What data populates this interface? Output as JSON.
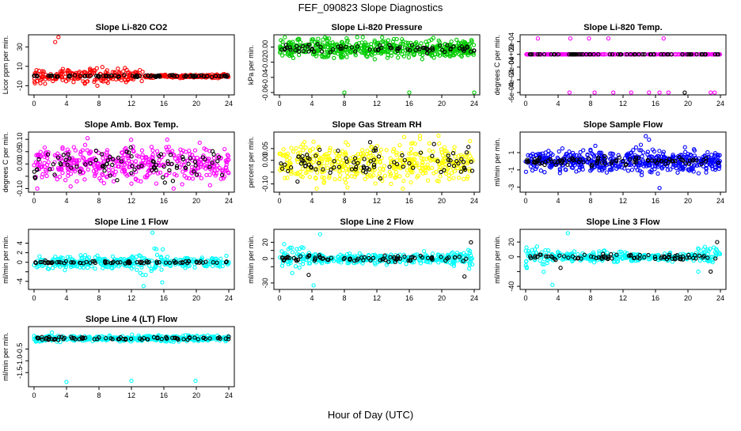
{
  "figure": {
    "title": "FEF_090823  Slope Diagnostics",
    "xlabel": "Hour of Day (UTC)"
  },
  "chart_data": [
    {
      "type": "scatter",
      "title": "Slope Li-820 CO2",
      "xlabel": "",
      "ylabel": "Licor ppm per min.",
      "xlim": [
        0,
        24
      ],
      "ylim": [
        -17,
        40
      ],
      "xticks": [
        0,
        4,
        8,
        12,
        16,
        20,
        24
      ],
      "yticks": [
        -10,
        10,
        30
      ],
      "ytick_labels": [
        "-10",
        "10",
        "30"
      ],
      "series": [
        {
          "color": "#ff0000",
          "center": 0,
          "spread": 3.5,
          "tail_end": 14,
          "points": 360,
          "outliers": [
            [
              2.6,
              35
            ],
            [
              3.0,
              40
            ],
            [
              7.8,
              -10
            ],
            [
              9.1,
              -7
            ]
          ]
        },
        {
          "color": "#000000",
          "center": 0,
          "spread": 0.5,
          "points": 90
        }
      ]
    },
    {
      "type": "scatter",
      "title": "Slope Li-820 Pressure",
      "xlabel": "",
      "ylabel": "kPa per min.",
      "xlim": [
        0,
        24
      ],
      "ylim": [
        -0.06,
        0.013
      ],
      "xticks": [
        0,
        4,
        8,
        12,
        16,
        20,
        24
      ],
      "yticks": [
        -0.06,
        -0.04,
        -0.02,
        0.0
      ],
      "ytick_labels": [
        "-0.06",
        "-0.04",
        "-0.02",
        "0.00"
      ],
      "series": [
        {
          "color": "#00cc00",
          "center": -0.002,
          "spread": 0.006,
          "points": 520,
          "outliers": [
            [
              8.0,
              -0.06
            ],
            [
              16.0,
              -0.06
            ],
            [
              24.0,
              -0.06
            ],
            [
              4.0,
              0.01
            ]
          ]
        },
        {
          "color": "#000000",
          "center": -0.002,
          "spread": 0.003,
          "points": 80
        }
      ]
    },
    {
      "type": "scatter",
      "title": "Slope Li-820 Temp.",
      "xlabel": "",
      "ylabel": "degrees C per min.",
      "xlim": [
        0,
        24
      ],
      "ylim": [
        -0.0006,
        0.00027
      ],
      "xticks": [
        0,
        4,
        8,
        12,
        16,
        20,
        24
      ],
      "yticks": [
        -0.0006,
        -0.0004,
        -0.0002,
        0.0,
        0.0002
      ],
      "ytick_labels": [
        "-6e-04",
        "-4e-04",
        "-2e-04",
        "0e+00",
        "2e-04"
      ],
      "series": [
        {
          "color": "#ff00ff",
          "center": 0,
          "spread": 0,
          "points": 240,
          "outliers": [
            [
              1.5,
              0.00025
            ],
            [
              5.5,
              0.00025
            ],
            [
              7.8,
              0.00025
            ],
            [
              10.2,
              0.00025
            ],
            [
              17.0,
              0.00025
            ],
            [
              5.4,
              -0.0006
            ],
            [
              8.5,
              -0.0006
            ],
            [
              10.8,
              -0.0006
            ],
            [
              13.0,
              -0.0006
            ],
            [
              15.2,
              -0.0006
            ],
            [
              16.5,
              -0.0006
            ],
            [
              17.6,
              -0.0006
            ],
            [
              22.8,
              -0.0006
            ],
            [
              23.3,
              -0.0006
            ]
          ]
        },
        {
          "color": "#000000",
          "center": 0,
          "spread": 0,
          "points": 70,
          "outliers": [
            [
              19.6,
              -0.0006
            ]
          ]
        }
      ]
    },
    {
      "type": "scatter",
      "title": "Slope Amb. Box Temp.",
      "xlabel": "",
      "ylabel": "degrees C per min.",
      "xlim": [
        0,
        24
      ],
      "ylim": [
        -0.105,
        0.12
      ],
      "xticks": [
        0,
        4,
        8,
        12,
        16,
        20,
        24
      ],
      "yticks": [
        -0.1,
        -0.05,
        0.0,
        0.05,
        0.1
      ],
      "ytick_labels": [
        "-0.10",
        "",
        "0.00",
        "0.05",
        "0.10"
      ],
      "series": [
        {
          "color": "#ff00ff",
          "center": 0.0,
          "spread": 0.035,
          "points": 440,
          "outliers": [
            [
              6.6,
              0.105
            ],
            [
              0.4,
              -0.1
            ],
            [
              12.0,
              -0.08
            ],
            [
              17.2,
              -0.1
            ]
          ]
        },
        {
          "color": "#000000",
          "center": 0.0,
          "spread": 0.03,
          "points": 90
        }
      ]
    },
    {
      "type": "scatter",
      "title": "Slope Gas Stream RH",
      "xlabel": "",
      "ylabel": "percent per min.",
      "xlim": [
        0,
        24
      ],
      "ylim": [
        -0.125,
        0.11
      ],
      "xticks": [
        0,
        4,
        8,
        12,
        16,
        20,
        24
      ],
      "yticks": [
        -0.1,
        -0.05,
        0.0,
        0.05
      ],
      "ytick_labels": [
        "-0.10",
        "",
        "0.00",
        "0.05"
      ],
      "series": [
        {
          "color": "#ffff00",
          "center": -0.01,
          "spread": 0.04,
          "points": 460,
          "outliers": [
            [
              19.6,
              0.105
            ],
            [
              4.6,
              -0.12
            ],
            [
              15.2,
              -0.12
            ]
          ]
        },
        {
          "color": "#000000",
          "center": -0.01,
          "spread": 0.035,
          "points": 90
        }
      ]
    },
    {
      "type": "scatter",
      "title": "Slope Sample Flow",
      "xlabel": "",
      "ylabel": "ml/min per min.",
      "xlim": [
        0,
        24
      ],
      "ylim": [
        -3.3,
        3.1
      ],
      "xticks": [
        0,
        4,
        8,
        12,
        16,
        20,
        24
      ],
      "yticks": [
        -3,
        -1,
        1
      ],
      "ytick_labels": [
        "-3",
        "-1",
        "1"
      ],
      "series": [
        {
          "color": "#0000ff",
          "center": 0,
          "spread": 0.6,
          "points": 520,
          "outliers": [
            [
              14.8,
              2.9
            ],
            [
              15.2,
              2.5
            ],
            [
              14.2,
              1.9
            ],
            [
              13.6,
              1.6
            ],
            [
              16.5,
              -3.1
            ]
          ]
        },
        {
          "color": "#000000",
          "center": 0,
          "spread": 0.25,
          "points": 90
        }
      ]
    },
    {
      "type": "scatter",
      "title": "Slope Line 1 Flow",
      "xlabel": "",
      "ylabel": "ml/min per min.",
      "xlim": [
        0,
        24
      ],
      "ylim": [
        -5.2,
        6.4
      ],
      "xticks": [
        0,
        4,
        8,
        12,
        16,
        20,
        24
      ],
      "yticks": [
        -4,
        -2,
        0,
        2,
        4
      ],
      "ytick_labels": [
        "-4",
        "",
        "0",
        "2",
        "4"
      ],
      "series": [
        {
          "color": "#00ffff",
          "center": 0,
          "spread": 0.6,
          "points": 360,
          "burst": [
            12,
            16,
            2.2
          ],
          "outliers": [
            [
              14.6,
              6.2
            ],
            [
              13.5,
              -5.0
            ],
            [
              15.8,
              -4.2
            ]
          ]
        },
        {
          "color": "#000000",
          "center": 0,
          "spread": 0.12,
          "points": 80
        }
      ]
    },
    {
      "type": "scatter",
      "title": "Slope Line 2 Flow",
      "xlabel": "",
      "ylabel": "ml/min per min.",
      "xlim": [
        0,
        24
      ],
      "ylim": [
        -35,
        33
      ],
      "xticks": [
        0,
        4,
        8,
        12,
        16,
        20,
        24
      ],
      "yticks": [
        -30,
        -10,
        0,
        10,
        20
      ],
      "ytick_labels": [
        "-30",
        "",
        "0",
        "",
        "20"
      ],
      "series": [
        {
          "color": "#00ffff",
          "center": 0,
          "spread": 3,
          "points": 360,
          "burst_edges": 12,
          "outliers": [
            [
              5.0,
              30
            ],
            [
              4.2,
              -33
            ]
          ]
        },
        {
          "color": "#000000",
          "center": 0,
          "spread": 2,
          "points": 80,
          "outliers": [
            [
              3.6,
              -20
            ],
            [
              23.6,
              20
            ],
            [
              22.8,
              -22
            ]
          ]
        }
      ]
    },
    {
      "type": "scatter",
      "title": "Slope Line 3 Flow",
      "xlabel": "",
      "ylabel": "ml/min per min.",
      "xlim": [
        0,
        24
      ],
      "ylim": [
        -41,
        34
      ],
      "xticks": [
        0,
        4,
        8,
        12,
        16,
        20,
        24
      ],
      "yticks": [
        -40,
        -20,
        0,
        20
      ],
      "ytick_labels": [
        "-40",
        "",
        "0",
        "20"
      ],
      "series": [
        {
          "color": "#00ffff",
          "center": 0,
          "spread": 3,
          "points": 360,
          "burst_edges": 14,
          "outliers": [
            [
              5.2,
              32
            ],
            [
              3.3,
              -38
            ]
          ]
        },
        {
          "color": "#000000",
          "center": 0,
          "spread": 2,
          "points": 80,
          "outliers": [
            [
              4.3,
              -15
            ],
            [
              23.6,
              20
            ],
            [
              22.8,
              -20
            ]
          ]
        }
      ]
    },
    {
      "type": "scatter",
      "title": "Slope Line 4 (LT) Flow",
      "xlabel": "",
      "ylabel": "ml/min per min.",
      "xlim": [
        0,
        24
      ],
      "ylim": [
        -2.0,
        0.35
      ],
      "xticks": [
        0,
        4,
        8,
        12,
        16,
        20,
        24
      ],
      "yticks": [
        -1.5,
        -1.0,
        -0.5
      ],
      "ytick_labels": [
        "-1.5",
        "-1.0",
        "-0.5"
      ],
      "series": [
        {
          "color": "#00ffff",
          "center": -0.05,
          "spread": 0.06,
          "points": 420,
          "outliers": [
            [
              2.2,
              0.2
            ],
            [
              4.0,
              -1.9
            ],
            [
              12.0,
              -1.85
            ],
            [
              19.9,
              -1.85
            ]
          ]
        },
        {
          "color": "#000000",
          "center": -0.05,
          "spread": 0.035,
          "points": 80
        }
      ]
    }
  ]
}
